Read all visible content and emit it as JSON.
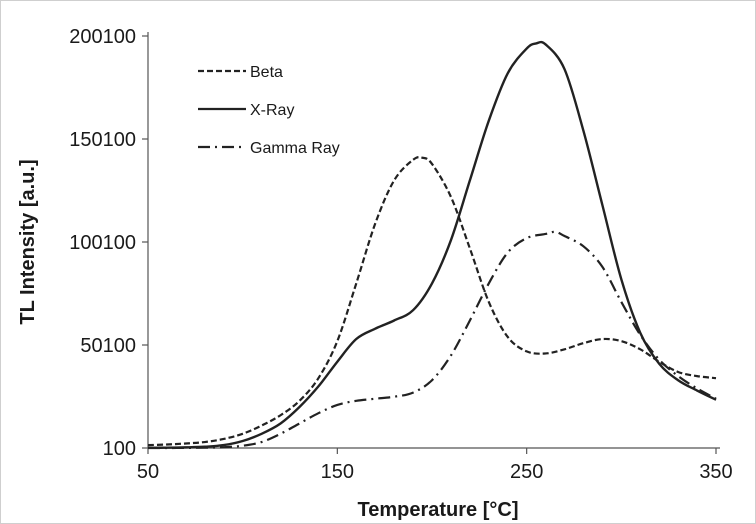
{
  "chart_data": {
    "type": "line",
    "title": "",
    "xlabel": "Temperature [°C]",
    "ylabel": "TL Intensity [a.u.]",
    "xlim": [
      50,
      350
    ],
    "ylim": [
      100,
      200100
    ],
    "x_ticks": [
      50,
      150,
      250,
      350
    ],
    "y_ticks": [
      100,
      50100,
      100100,
      150100,
      200100
    ],
    "x_tick_labels": [
      "50",
      "150",
      "250",
      "350"
    ],
    "y_tick_labels": [
      "100",
      "50100",
      "100100",
      "150100",
      "200100"
    ],
    "grid": false,
    "legend_position": "top-left",
    "series": [
      {
        "name": "Beta",
        "style": "dashed",
        "color": "#222222",
        "x": [
          50,
          60,
          70,
          80,
          90,
          100,
          110,
          120,
          130,
          140,
          150,
          160,
          170,
          180,
          190,
          195,
          200,
          210,
          220,
          230,
          240,
          250,
          260,
          270,
          280,
          290,
          300,
          310,
          320,
          330,
          340,
          350
        ],
        "y": [
          1500,
          1800,
          2300,
          3000,
          4500,
          7000,
          11000,
          16000,
          23000,
          34000,
          52000,
          80000,
          109000,
          130000,
          140000,
          141000,
          138000,
          122000,
          97000,
          71000,
          54000,
          47000,
          46000,
          48000,
          51000,
          53000,
          52000,
          48000,
          42000,
          37000,
          35000,
          34000
        ]
      },
      {
        "name": "X-Ray",
        "style": "solid",
        "color": "#222222",
        "x": [
          50,
          60,
          70,
          80,
          90,
          100,
          110,
          120,
          130,
          140,
          150,
          160,
          170,
          180,
          190,
          200,
          210,
          220,
          230,
          240,
          250,
          255,
          260,
          270,
          280,
          290,
          300,
          310,
          320,
          330,
          340,
          350
        ],
        "y": [
          200,
          250,
          400,
          700,
          1500,
          3500,
          7000,
          12000,
          20000,
          30000,
          42000,
          53000,
          58000,
          62000,
          67000,
          80000,
          101000,
          130000,
          159000,
          182000,
          194000,
          196500,
          196000,
          184000,
          154000,
          118000,
          82000,
          56000,
          41000,
          33000,
          28000,
          23500
        ]
      },
      {
        "name": "Gamma Ray",
        "style": "dash-dot",
        "color": "#222222",
        "x": [
          50,
          60,
          70,
          80,
          90,
          100,
          110,
          120,
          130,
          140,
          150,
          160,
          170,
          180,
          190,
          200,
          210,
          220,
          230,
          240,
          250,
          260,
          265,
          270,
          280,
          290,
          300,
          310,
          320,
          330,
          340,
          350
        ],
        "y": [
          100,
          100,
          150,
          250,
          500,
          1200,
          3000,
          7000,
          12000,
          17000,
          21000,
          23000,
          24000,
          25000,
          27000,
          33000,
          45000,
          62000,
          80000,
          95000,
          102000,
          104000,
          105000,
          103000,
          98000,
          88000,
          71000,
          55000,
          43000,
          35000,
          29000,
          24000
        ]
      }
    ]
  }
}
